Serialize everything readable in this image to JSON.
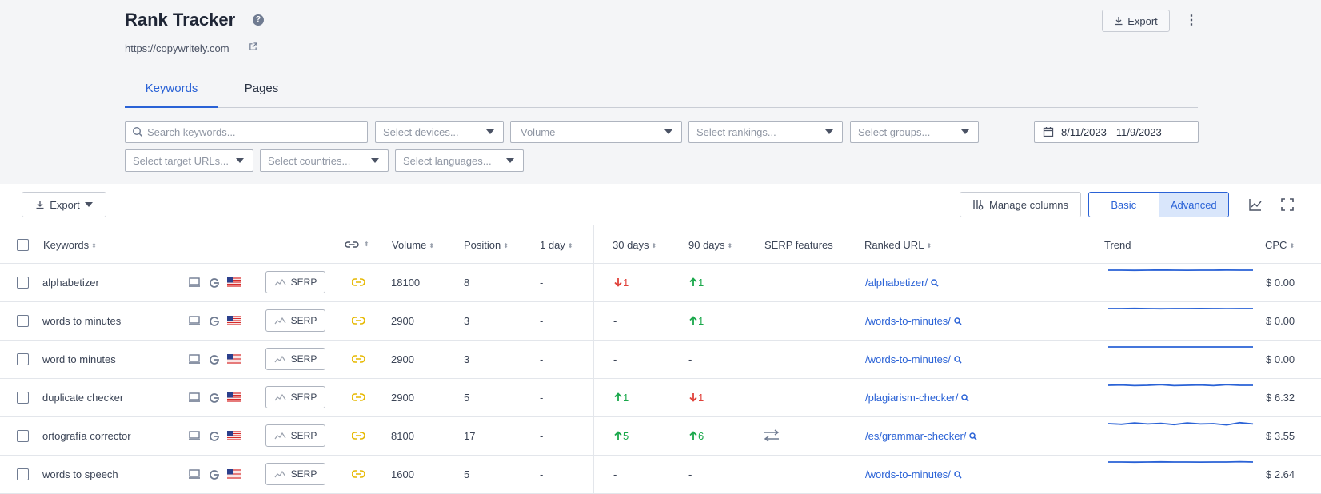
{
  "header": {
    "title": "Rank Tracker",
    "help_glyph": "?",
    "site_url": "https://copywritely.com",
    "export_label": "Export",
    "menu_glyph": "⋮"
  },
  "tabs": [
    {
      "label": "Keywords",
      "active": true
    },
    {
      "label": "Pages",
      "active": false
    }
  ],
  "filters": {
    "search_placeholder": "Search keywords...",
    "devices": "Select devices...",
    "volume": "Volume",
    "rankings": "Select rankings...",
    "groups": "Select groups...",
    "date_from": "8/11/2023",
    "date_to": "11/9/2023",
    "target_urls": "Select target URLs...",
    "countries": "Select countries...",
    "languages": "Select languages..."
  },
  "toolbar": {
    "export_label": "Export",
    "manage_columns_label": "Manage columns",
    "view_basic": "Basic",
    "view_advanced": "Advanced",
    "active_view": "Advanced"
  },
  "columns": {
    "keywords": "Keywords",
    "volume": "Volume",
    "position": "Position",
    "day1": "1 day",
    "days30": "30 days",
    "days90": "90 days",
    "serp_features": "SERP features",
    "ranked_url": "Ranked URL",
    "trend": "Trend",
    "cpc": "CPC"
  },
  "serp_button_label": "SERP",
  "rows": [
    {
      "keyword": "alphabetizer",
      "volume": "18100",
      "position": "8",
      "day1": "-",
      "d30": {
        "dir": "down",
        "value": "1"
      },
      "d90": {
        "dir": "up",
        "value": "1"
      },
      "serp_feature": false,
      "url": "/alphabetizer/",
      "cpc": "$ 0.00",
      "trend": [
        0.5,
        0.5,
        0.48,
        0.5,
        0.52,
        0.5,
        0.49,
        0.5,
        0.5,
        0.51,
        0.5,
        0.5
      ]
    },
    {
      "keyword": "words to minutes",
      "volume": "2900",
      "position": "3",
      "day1": "-",
      "d30": {
        "dir": "none",
        "value": "-"
      },
      "d90": {
        "dir": "up",
        "value": "1"
      },
      "serp_feature": false,
      "url": "/words-to-minutes/",
      "cpc": "$ 0.00",
      "trend": [
        0.5,
        0.5,
        0.52,
        0.5,
        0.48,
        0.5,
        0.5,
        0.51,
        0.5,
        0.49,
        0.5,
        0.5
      ]
    },
    {
      "keyword": "word to minutes",
      "volume": "2900",
      "position": "3",
      "day1": "-",
      "d30": {
        "dir": "none",
        "value": "-"
      },
      "d90": {
        "dir": "none",
        "value": "-"
      },
      "serp_feature": false,
      "url": "/words-to-minutes/",
      "cpc": "$ 0.00",
      "trend": [
        0.5,
        0.5,
        0.5,
        0.5,
        0.5,
        0.5,
        0.5,
        0.5,
        0.5,
        0.5,
        0.5,
        0.5
      ]
    },
    {
      "keyword": "duplicate checker",
      "volume": "2900",
      "position": "5",
      "day1": "-",
      "d30": {
        "dir": "up",
        "value": "1"
      },
      "d90": {
        "dir": "down",
        "value": "1"
      },
      "serp_feature": false,
      "url": "/plagiarism-checker/",
      "cpc": "$ 6.32",
      "trend": [
        0.5,
        0.55,
        0.45,
        0.5,
        0.6,
        0.45,
        0.5,
        0.55,
        0.45,
        0.6,
        0.5,
        0.5
      ]
    },
    {
      "keyword": "ortografía corrector",
      "volume": "8100",
      "position": "17",
      "day1": "-",
      "d30": {
        "dir": "up",
        "value": "5"
      },
      "d90": {
        "dir": "up",
        "value": "6"
      },
      "serp_feature": true,
      "url": "/es/grammar-checker/",
      "cpc": "$ 3.55",
      "trend": [
        0.5,
        0.4,
        0.6,
        0.45,
        0.55,
        0.35,
        0.6,
        0.45,
        0.5,
        0.3,
        0.65,
        0.45
      ]
    },
    {
      "keyword": "words to speech",
      "volume": "1600",
      "position": "5",
      "day1": "-",
      "d30": {
        "dir": "none",
        "value": "-"
      },
      "d90": {
        "dir": "none",
        "value": "-"
      },
      "serp_feature": false,
      "url": "/words-to-minutes/",
      "cpc": "$ 2.64",
      "trend": [
        0.5,
        0.5,
        0.48,
        0.5,
        0.52,
        0.5,
        0.5,
        0.49,
        0.5,
        0.5,
        0.55,
        0.5
      ]
    }
  ],
  "colors": {
    "accent": "#2a62d6",
    "up": "#1aa84b",
    "down": "#e0413a",
    "link_icon": "#e6b800"
  }
}
